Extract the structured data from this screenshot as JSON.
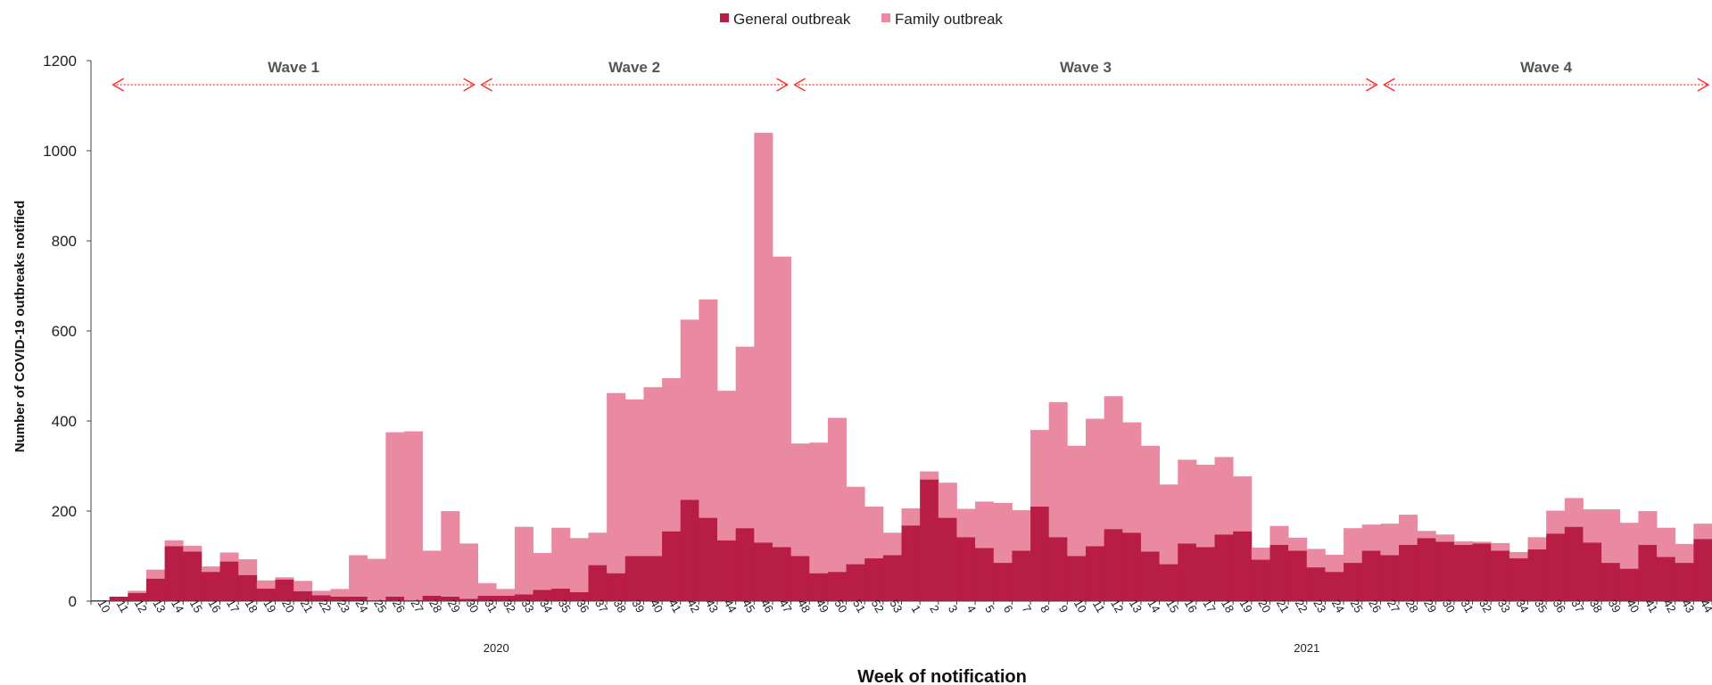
{
  "chart_data": {
    "type": "bar",
    "stacked": true,
    "legend_position": "top-center",
    "grid": false,
    "ylabel": "Number of COVID-19 outbreaks notified",
    "xlabel": "Week of notification",
    "ylim": [
      0,
      1200
    ],
    "yticks": [
      "0",
      "200",
      "400",
      "600",
      "800",
      "1000",
      "1200"
    ],
    "colors": {
      "general": "#b81d45",
      "family": "#ea89a2",
      "wave_arrow": "#ff2a2a"
    },
    "years": [
      {
        "label": "2020",
        "start_index": 0,
        "end_index": 43
      },
      {
        "label": "2021",
        "start_index": 44,
        "end_index": 87
      }
    ],
    "waves": [
      {
        "label": "Wave 1",
        "start_index": 1,
        "end_index": 20
      },
      {
        "label": "Wave 2",
        "start_index": 21,
        "end_index": 37
      },
      {
        "label": "Wave 3",
        "start_index": 38,
        "end_index": 69
      },
      {
        "label": "Wave 4",
        "start_index": 70,
        "end_index": 87
      }
    ],
    "categories": [
      "10",
      "11",
      "12",
      "13",
      "14",
      "15",
      "16",
      "17",
      "18",
      "19",
      "20",
      "21",
      "22",
      "23",
      "24",
      "25",
      "26",
      "27",
      "28",
      "29",
      "30",
      "31",
      "32",
      "33",
      "34",
      "35",
      "36",
      "37",
      "38",
      "39",
      "40",
      "41",
      "42",
      "43",
      "44",
      "45",
      "46",
      "47",
      "48",
      "49",
      "50",
      "51",
      "52",
      "53",
      "1",
      "2",
      "3",
      "4",
      "5",
      "6",
      "7",
      "8",
      "9",
      "10",
      "11",
      "12",
      "13",
      "14",
      "15",
      "16",
      "17",
      "18",
      "19",
      "20",
      "21",
      "22",
      "23",
      "24",
      "25",
      "26",
      "27",
      "28",
      "29",
      "30",
      "31",
      "32",
      "33",
      "34",
      "35",
      "36",
      "37",
      "38",
      "39",
      "40",
      "41",
      "42",
      "43",
      "44"
    ],
    "series": [
      {
        "name": "General outbreak",
        "values": [
          2,
          10,
          18,
          50,
          122,
          110,
          65,
          88,
          58,
          28,
          48,
          22,
          13,
          10,
          10,
          2,
          10,
          2,
          12,
          10,
          5,
          12,
          12,
          15,
          25,
          28,
          20,
          80,
          62,
          100,
          100,
          155,
          225,
          185,
          135,
          162,
          130,
          120,
          100,
          62,
          65,
          82,
          95,
          102,
          168,
          270,
          185,
          142,
          118,
          85,
          112,
          210,
          142,
          100,
          122,
          160,
          152,
          110,
          82,
          128,
          120,
          148,
          155,
          92,
          125,
          112,
          75,
          65,
          85,
          112,
          102,
          125,
          140,
          132,
          125,
          128,
          112,
          95,
          115,
          150,
          165,
          130,
          85,
          72,
          125,
          98,
          85,
          138
        ]
      },
      {
        "name": "Family outbreak",
        "values": [
          0,
          0,
          5,
          20,
          13,
          13,
          12,
          20,
          35,
          18,
          5,
          23,
          10,
          17,
          92,
          92,
          365,
          375,
          100,
          190,
          123,
          28,
          15,
          150,
          82,
          135,
          120,
          72,
          400,
          348,
          375,
          340,
          400,
          485,
          332,
          403,
          910,
          645,
          250,
          290,
          342,
          172,
          115,
          50,
          38,
          18,
          78,
          63,
          103,
          133,
          90,
          170,
          300,
          245,
          283,
          295,
          245,
          235,
          177,
          186,
          183,
          172,
          122,
          27,
          42,
          29,
          41,
          38,
          77,
          58,
          70,
          67,
          16,
          16,
          8,
          4,
          17,
          14,
          27,
          51,
          64,
          74,
          119,
          102,
          75,
          65,
          42,
          34
        ]
      }
    ]
  }
}
